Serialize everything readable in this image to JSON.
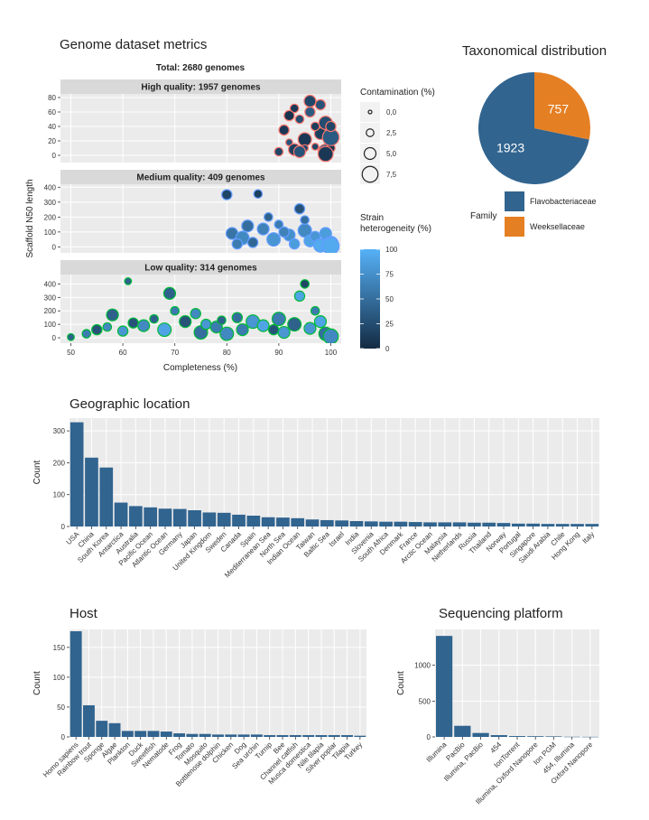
{
  "chart_data": [
    {
      "type": "scatter",
      "title": "Genome dataset metrics",
      "subtitle": "Total: 2680 genomes",
      "xlabel": "Completeness (%)",
      "ylabel": "Scaffold N50 length",
      "xlim": [
        48,
        102
      ],
      "x_ticks": [
        50,
        60,
        70,
        80,
        90,
        100
      ],
      "size_legend": {
        "title": "Contamination (%)",
        "labels": [
          "0,0",
          "2,5",
          "5,0",
          "7,5"
        ],
        "values": [
          0,
          2.5,
          5,
          7.5
        ]
      },
      "color_legend": {
        "title": [
          "Strain",
          "heterogeneity (%)"
        ],
        "ticks": [
          100,
          75,
          50,
          25,
          0
        ],
        "low": "#132b43",
        "high": "#56b1f7"
      },
      "panels": [
        {
          "name": "High quality: 1957 genomes",
          "ylim": [
            -10,
            85
          ],
          "yticks": [
            0,
            20,
            40,
            60,
            80
          ],
          "stroke": "#f8766d",
          "points": [
            [
              90,
              5,
              3,
              20
            ],
            [
              91,
              35,
              4,
              10
            ],
            [
              92,
              18,
              2,
              30
            ],
            [
              93,
              8,
              5,
              15
            ],
            [
              94,
              50,
              3,
              25
            ],
            [
              95,
              22,
              6,
              10
            ],
            [
              96,
              60,
              4,
              35
            ],
            [
              97,
              12,
              2,
              20
            ],
            [
              98,
              30,
              5,
              15
            ],
            [
              99,
              5,
              7,
              40
            ],
            [
              100,
              10,
              3,
              5
            ],
            [
              96,
              75,
              5,
              20
            ],
            [
              93,
              65,
              3,
              10
            ],
            [
              98,
              70,
              4,
              30
            ],
            [
              99,
              45,
              6,
              25
            ],
            [
              100,
              25,
              8,
              35
            ],
            [
              97,
              40,
              3,
              15
            ],
            [
              95,
              10,
              2,
              20
            ],
            [
              92,
              55,
              4,
              5
            ],
            [
              94,
              5,
              5,
              30
            ],
            [
              99,
              2,
              7,
              10
            ],
            [
              100,
              40,
              4,
              20
            ]
          ]
        },
        {
          "name": "Medium quality: 409 genomes",
          "ylim": [
            -40,
            420
          ],
          "yticks": [
            0,
            100,
            200,
            300,
            400
          ],
          "stroke": "#619cff",
          "points": [
            [
              80,
              350,
              4,
              20
            ],
            [
              86,
              355,
              3,
              15
            ],
            [
              94,
              255,
              4,
              30
            ],
            [
              81,
              90,
              5,
              55
            ],
            [
              83,
              60,
              6,
              70
            ],
            [
              85,
              30,
              4,
              45
            ],
            [
              87,
              120,
              5,
              65
            ],
            [
              89,
              50,
              6,
              80
            ],
            [
              90,
              150,
              3,
              60
            ],
            [
              92,
              80,
              5,
              75
            ],
            [
              93,
              20,
              4,
              85
            ],
            [
              95,
              110,
              6,
              70
            ],
            [
              96,
              40,
              5,
              90
            ],
            [
              97,
              70,
              4,
              80
            ],
            [
              98,
              10,
              6,
              95
            ],
            [
              99,
              90,
              5,
              85
            ],
            [
              100,
              20,
              7,
              90
            ],
            [
              82,
              20,
              4,
              60
            ],
            [
              84,
              140,
              5,
              50
            ],
            [
              88,
              200,
              3,
              40
            ],
            [
              91,
              100,
              4,
              65
            ],
            [
              95,
              180,
              3,
              50
            ],
            [
              100,
              5,
              8,
              95
            ]
          ]
        },
        {
          "name": "Low quality: 314 genomes",
          "ylim": [
            -40,
            470
          ],
          "yticks": [
            0,
            100,
            200,
            300,
            400
          ],
          "stroke": "#00ba38",
          "points": [
            [
              50,
              5,
              2,
              40
            ],
            [
              53,
              30,
              3,
              60
            ],
            [
              55,
              60,
              4,
              30
            ],
            [
              57,
              80,
              3,
              70
            ],
            [
              58,
              170,
              5,
              40
            ],
            [
              60,
              50,
              4,
              80
            ],
            [
              61,
              420,
              2,
              40
            ],
            [
              62,
              110,
              4,
              30
            ],
            [
              64,
              90,
              5,
              70
            ],
            [
              66,
              140,
              3,
              40
            ],
            [
              68,
              60,
              6,
              90
            ],
            [
              69,
              330,
              5,
              40
            ],
            [
              70,
              200,
              3,
              60
            ],
            [
              72,
              120,
              5,
              30
            ],
            [
              74,
              180,
              4,
              70
            ],
            [
              75,
              40,
              6,
              50
            ],
            [
              76,
              100,
              4,
              80
            ],
            [
              78,
              80,
              5,
              60
            ],
            [
              79,
              130,
              3,
              40
            ],
            [
              80,
              30,
              6,
              70
            ],
            [
              82,
              150,
              4,
              50
            ],
            [
              83,
              60,
              5,
              60
            ],
            [
              85,
              120,
              6,
              80
            ],
            [
              87,
              90,
              5,
              90
            ],
            [
              89,
              60,
              4,
              30
            ],
            [
              90,
              140,
              6,
              60
            ],
            [
              91,
              40,
              5,
              80
            ],
            [
              93,
              100,
              6,
              40
            ],
            [
              94,
              310,
              4,
              90
            ],
            [
              95,
              400,
              3,
              20
            ],
            [
              96,
              70,
              5,
              80
            ],
            [
              97,
              200,
              3,
              60
            ],
            [
              98,
              120,
              5,
              90
            ],
            [
              99,
              30,
              6,
              50
            ],
            [
              100,
              10,
              7,
              70
            ]
          ]
        }
      ]
    },
    {
      "type": "pie",
      "title": "Taxonomical distribution",
      "legend_title": "Family",
      "slices": [
        {
          "label": "Flavobacteriaceae",
          "value": 1923,
          "color": "#31648f"
        },
        {
          "label": "Weeksellaceae",
          "value": 757,
          "color": "#e57f23"
        }
      ]
    },
    {
      "type": "bar",
      "title": "Geographic location",
      "ylabel": "Count",
      "ylim": [
        0,
        340
      ],
      "yticks": [
        0,
        100,
        200,
        300
      ],
      "color": "#31648f",
      "categories": [
        "USA",
        "China",
        "South Korea",
        "Antarctica",
        "Australia",
        "Pacific Ocean",
        "Atlantic Ocean",
        "Germany",
        "Japan",
        "United Kingdom",
        "Sweden",
        "Canada",
        "Spain",
        "Mediterranean Sea",
        "North Sea",
        "Indian Ocean",
        "Taiwan",
        "Baltic Sea",
        "Israel",
        "India",
        "Slovenia",
        "South Africa",
        "Denmark",
        "France",
        "Arctic Ocean",
        "Malaysia",
        "Netherlands",
        "Russia",
        "Thailand",
        "Norway",
        "Portugal",
        "Singapore",
        "Saudi Arabia",
        "Chile",
        "Hong Kong",
        "Italy"
      ],
      "values": [
        327,
        216,
        185,
        75,
        64,
        60,
        56,
        55,
        51,
        44,
        43,
        37,
        34,
        29,
        28,
        26,
        22,
        20,
        19,
        17,
        16,
        15,
        15,
        14,
        13,
        13,
        13,
        12,
        12,
        11,
        9,
        9,
        8,
        8,
        8,
        8
      ]
    },
    {
      "type": "bar",
      "title": "Host",
      "ylabel": "Count",
      "ylim": [
        0,
        180
      ],
      "yticks": [
        0,
        50,
        100,
        150
      ],
      "color": "#31648f",
      "categories": [
        "Homo sapiens",
        "Rainbow trout",
        "Sponge",
        "Algae",
        "Plankton",
        "Duck",
        "Sweetfish",
        "Nematode",
        "Frog",
        "Tomato",
        "Mosquito",
        "Bottlenose dolphin",
        "Chicken",
        "Dog",
        "Sea urchin",
        "Turnip",
        "Bee",
        "Channel catfish",
        "Musca domestica",
        "Nile tilapia",
        "Silver poplar",
        "Tilapia",
        "Turkey"
      ],
      "values": [
        177,
        53,
        27,
        23,
        10,
        10,
        10,
        9,
        6,
        5,
        5,
        4,
        4,
        4,
        4,
        3,
        3,
        3,
        3,
        3,
        3,
        3,
        2
      ]
    },
    {
      "type": "bar",
      "title": "Sequencing platform",
      "ylabel": "Count",
      "ylim": [
        0,
        1500
      ],
      "yticks": [
        0,
        500,
        1000
      ],
      "color": "#31648f",
      "categories": [
        "Illumina",
        "PacBio",
        "Illumina, PacBio",
        "454",
        "IonTorrent",
        "Illumina, Oxford Nanopore",
        "Ion PGM",
        "454, Illumina",
        "Oxford Nanopore"
      ],
      "values": [
        1410,
        155,
        55,
        25,
        12,
        10,
        8,
        3,
        2
      ]
    }
  ]
}
